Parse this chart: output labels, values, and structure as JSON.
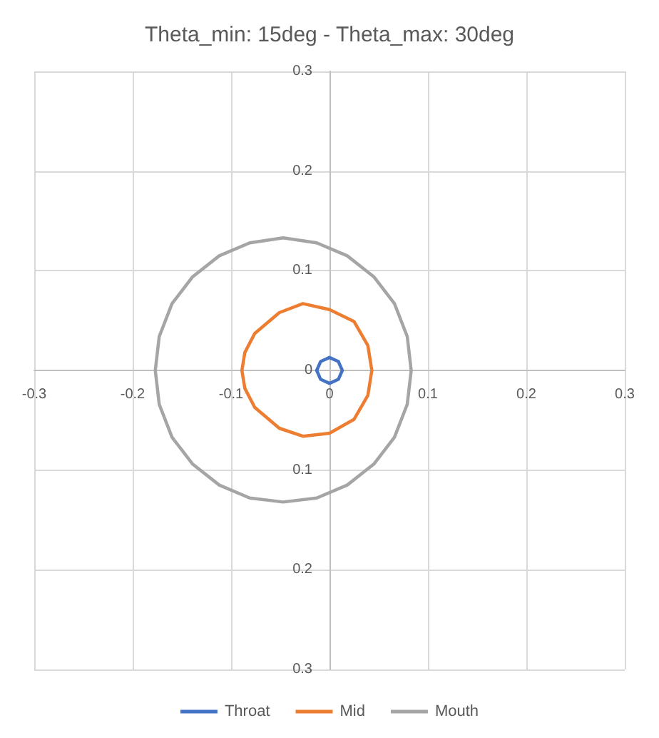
{
  "chart_data": {
    "type": "line",
    "title": "Theta_min: 15deg - Theta_max: 30deg",
    "xlim": [
      -0.3,
      0.3
    ],
    "xticks": [
      -0.3,
      -0.2,
      -0.1,
      0,
      0.1,
      0.2,
      0.3
    ],
    "ylim": [
      -0.3,
      0.3
    ],
    "yticks": [
      {
        "value": -0.3,
        "label": "0.3"
      },
      {
        "value": -0.2,
        "label": "0.2"
      },
      {
        "value": -0.1,
        "label": "0.1"
      },
      0,
      0.1,
      0.2,
      0.3
    ],
    "grid": true,
    "legend": "bottom",
    "marker": "none",
    "line_style": "solid",
    "series": [
      {
        "name": "Throat",
        "color": "#4472c4",
        "x": [
          0.013,
          0.009,
          0,
          -0.009,
          -0.013,
          -0.009,
          0,
          0.009,
          0.013,
          0.009
        ],
        "values": [
          0,
          0.009,
          0.013,
          0.009,
          0,
          -0.009,
          -0.013,
          -0.009,
          0,
          0.009
        ]
      },
      {
        "name": "Mid",
        "color": "#ed7d31",
        "x": [
          0.043,
          0.039,
          0.025,
          0,
          -0.027,
          -0.051,
          -0.076,
          -0.086,
          -0.089,
          -0.086,
          -0.076,
          -0.051,
          -0.027,
          0,
          0.025,
          0.039,
          0.043,
          0.039
        ],
        "values": [
          0,
          0.025,
          0.049,
          0.061,
          0.067,
          0.058,
          0.037,
          0.018,
          0,
          -0.018,
          -0.037,
          -0.058,
          -0.066,
          -0.063,
          -0.049,
          -0.025,
          0,
          0.025
        ]
      },
      {
        "name": "Mouth",
        "color": "#a5a5a5",
        "x": [
          0.083,
          0.079,
          0.066,
          0.045,
          0.018,
          -0.013,
          -0.047,
          -0.081,
          -0.112,
          -0.139,
          -0.16,
          -0.173,
          -0.177,
          -0.173,
          -0.16,
          -0.139,
          -0.112,
          -0.081,
          -0.047,
          -0.013,
          0.018,
          0.045,
          0.066,
          0.079,
          0.083,
          0.079
        ],
        "values": [
          0,
          0.034,
          0.067,
          0.094,
          0.115,
          0.128,
          0.133,
          0.128,
          0.115,
          0.094,
          0.067,
          0.034,
          0,
          -0.034,
          -0.067,
          -0.094,
          -0.115,
          -0.128,
          -0.132,
          -0.128,
          -0.115,
          -0.094,
          -0.067,
          -0.034,
          0,
          0.034
        ]
      }
    ]
  }
}
